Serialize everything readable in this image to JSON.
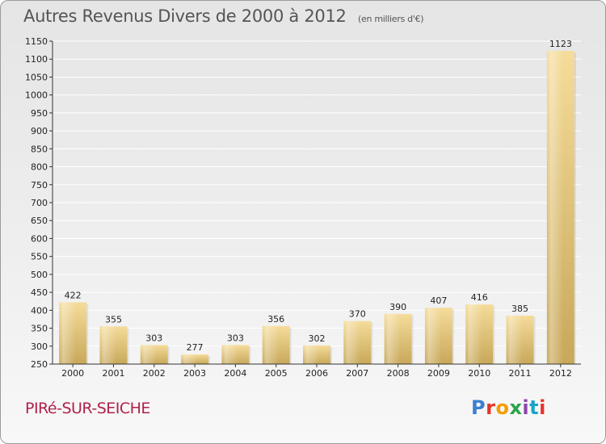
{
  "title": "Autres Revenus Divers de 2000 à 2012",
  "title_unit": "(en milliers d'€)",
  "town": "PIRé-SUR-SEICHE",
  "logo": {
    "p": "P",
    "r": "r",
    "o": "o",
    "x": "x",
    "i1": "i",
    "t": "t",
    "i2": "i"
  },
  "colors": {
    "bar_top": "#f5dc9a",
    "bar_bottom": "#c8a85a",
    "grid": "#ffffff",
    "axis": "#333333",
    "town": "#b0224a"
  },
  "chart_data": {
    "type": "bar",
    "categories": [
      "2000",
      "2001",
      "2002",
      "2003",
      "2004",
      "2005",
      "2006",
      "2007",
      "2008",
      "2009",
      "2010",
      "2011",
      "2012"
    ],
    "values": [
      422,
      355,
      303,
      277,
      303,
      356,
      302,
      370,
      390,
      407,
      416,
      385,
      1123
    ],
    "title": "Autres Revenus Divers de 2000 à 2012",
    "subtitle": "(en milliers d'€)",
    "ylim": [
      250,
      1150
    ],
    "yticks": [
      250,
      300,
      350,
      400,
      450,
      500,
      550,
      600,
      650,
      700,
      750,
      800,
      850,
      900,
      950,
      1000,
      1050,
      1100,
      1150
    ],
    "grid": true,
    "data_labels": true
  }
}
